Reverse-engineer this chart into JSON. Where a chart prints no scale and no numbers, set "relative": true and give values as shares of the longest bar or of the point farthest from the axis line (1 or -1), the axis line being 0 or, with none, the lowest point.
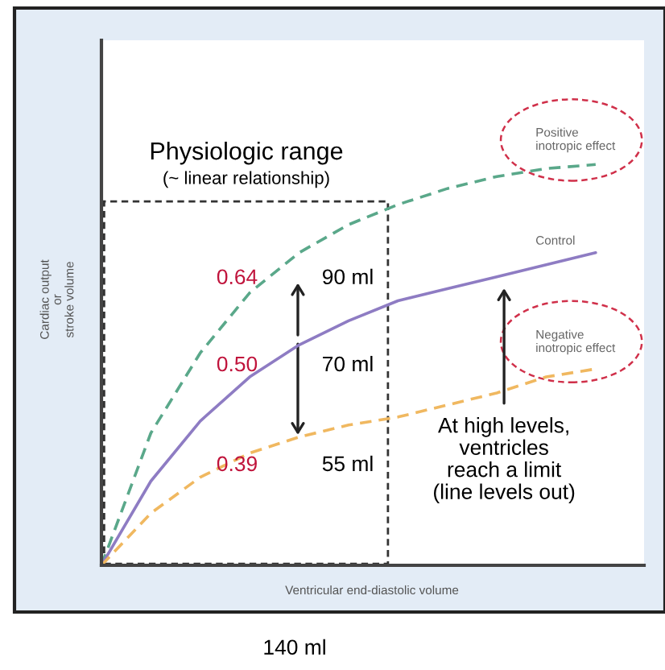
{
  "chart_data": {
    "type": "line",
    "relative": true,
    "xlabel": "Ventricular end-diastolic volume",
    "ylabel": "Cardiac output\nor\nstroke volume",
    "categories": [
      null,
      null,
      null,
      null,
      null,
      null,
      null,
      null,
      null,
      null,
      null
    ],
    "series": [
      {
        "name": "Positive\ninotropic effect",
        "color": "#5aa88a",
        "line_style": "dashed",
        "values": [
          0,
          0.33,
          0.53,
          0.68,
          0.78,
          0.85,
          0.9,
          0.94,
          0.97,
          0.99,
          1.0
        ]
      },
      {
        "name": "Control",
        "color": "#8e7cc3",
        "line_style": "solid",
        "values": [
          0,
          0.21,
          0.36,
          0.47,
          0.55,
          0.61,
          0.66,
          0.69,
          0.72,
          0.75,
          0.78
        ]
      },
      {
        "name": "Negative\ninotropic effect",
        "color": "#f0b860",
        "line_style": "dashed",
        "values": [
          0,
          0.13,
          0.22,
          0.28,
          0.32,
          0.35,
          0.37,
          0.4,
          0.43,
          0.47,
          0.49
        ]
      }
    ],
    "annotations": [
      "Physiologic range",
      "(~ linear relationship)",
      "0.64",
      "90 ml",
      "0.50",
      "70 ml",
      "0.39",
      "55 ml",
      "At high levels,\nventricles\nreach a limit\n(line levels out)",
      "140 ml"
    ],
    "legend": false
  }
}
